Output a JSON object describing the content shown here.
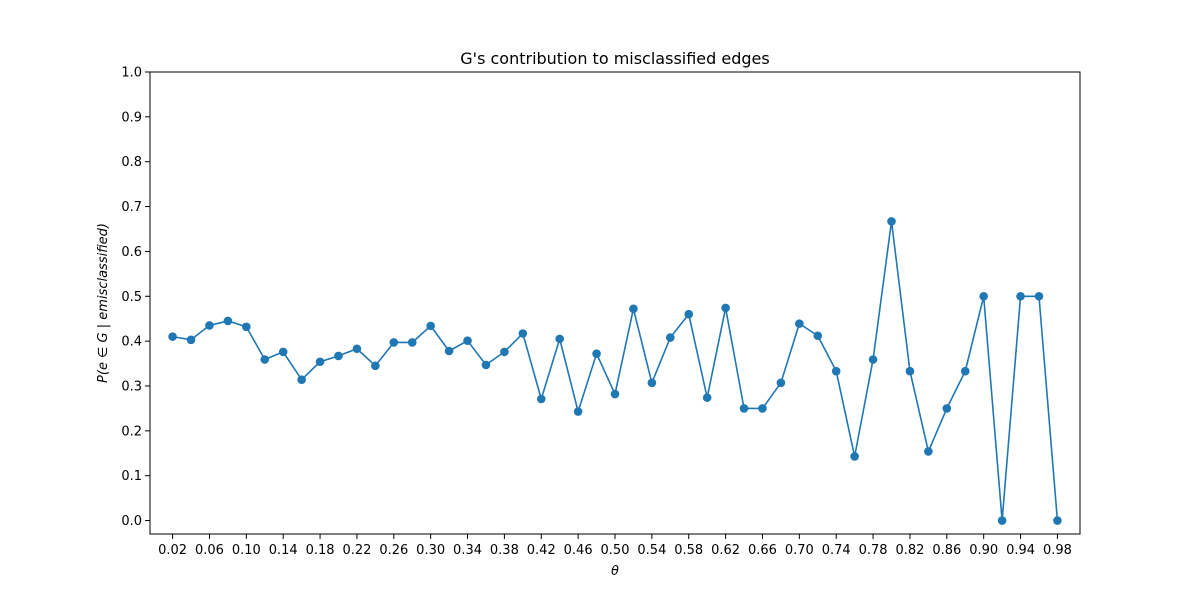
{
  "chart_data": {
    "type": "line",
    "title": "G's contribution to misclassified edges",
    "xlabel": "θ",
    "ylabel": "P(e ∈ G | emisclassified)",
    "ylim": [
      0.0,
      1.0
    ],
    "yticks": [
      "0.0",
      "0.1",
      "0.2",
      "0.3",
      "0.4",
      "0.5",
      "0.6",
      "0.7",
      "0.8",
      "0.9",
      "1.0"
    ],
    "xticks": [
      "0.02",
      "0.06",
      "0.10",
      "0.14",
      "0.18",
      "0.22",
      "0.26",
      "0.30",
      "0.34",
      "0.38",
      "0.42",
      "0.46",
      "0.50",
      "0.54",
      "0.58",
      "0.62",
      "0.66",
      "0.70",
      "0.74",
      "0.78",
      "0.82",
      "0.86",
      "0.90",
      "0.94",
      "0.98"
    ],
    "grid": false,
    "color": "#1f77b4",
    "x": [
      0.02,
      0.04,
      0.06,
      0.08,
      0.1,
      0.12,
      0.14,
      0.16,
      0.18,
      0.2,
      0.22,
      0.24,
      0.26,
      0.28,
      0.3,
      0.32,
      0.34,
      0.36,
      0.38,
      0.4,
      0.42,
      0.44,
      0.46,
      0.48,
      0.5,
      0.52,
      0.54,
      0.56,
      0.58,
      0.6,
      0.62,
      0.64,
      0.66,
      0.68,
      0.7,
      0.72,
      0.74,
      0.76,
      0.78,
      0.8,
      0.82,
      0.84,
      0.86,
      0.88,
      0.9,
      0.92,
      0.94,
      0.96,
      0.98
    ],
    "y": [
      0.41,
      0.403,
      0.435,
      0.445,
      0.432,
      0.359,
      0.376,
      0.314,
      0.354,
      0.367,
      0.383,
      0.345,
      0.397,
      0.397,
      0.434,
      0.378,
      0.401,
      0.347,
      0.376,
      0.417,
      0.271,
      0.405,
      0.243,
      0.372,
      0.282,
      0.472,
      0.307,
      0.408,
      0.46,
      0.274,
      0.474,
      0.25,
      0.25,
      0.307,
      0.439,
      0.412,
      0.333,
      0.143,
      0.359,
      0.667,
      0.333,
      0.154,
      0.25,
      0.333,
      0.5,
      0.0,
      0.5,
      0.5,
      0.0
    ]
  }
}
